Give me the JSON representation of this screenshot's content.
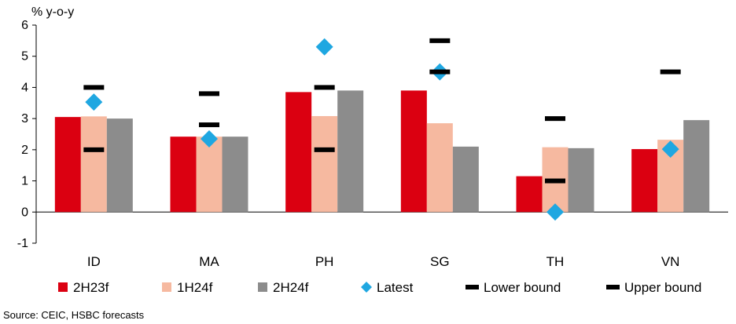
{
  "chart_data": {
    "type": "bar",
    "ylabel": "% y-o-y",
    "ylim": [
      -1,
      6
    ],
    "yticks": [
      -1,
      0,
      1,
      2,
      3,
      4,
      5,
      6
    ],
    "grid": false,
    "categories": [
      "ID",
      "MA",
      "PH",
      "SG",
      "TH",
      "VN"
    ],
    "series": [
      {
        "name": "2H23f",
        "kind": "bar",
        "color": "#db0011",
        "values": [
          3.05,
          2.42,
          3.85,
          3.9,
          1.15,
          2.02
        ]
      },
      {
        "name": "1H24f",
        "kind": "bar",
        "color": "#f6b9a0",
        "values": [
          3.07,
          2.42,
          3.08,
          2.85,
          2.08,
          2.32
        ]
      },
      {
        "name": "2H24f",
        "kind": "bar",
        "color": "#8c8c8c",
        "values": [
          3.0,
          2.42,
          3.9,
          2.1,
          2.05,
          2.95
        ]
      },
      {
        "name": "Latest",
        "kind": "marker",
        "color": "#1fa7e1",
        "values": [
          3.53,
          2.35,
          5.3,
          4.5,
          0.0,
          2.02
        ]
      },
      {
        "name": "Lower bound",
        "kind": "dash",
        "color": "#000000",
        "values": [
          2.0,
          2.8,
          2.0,
          4.5,
          1.0,
          null
        ]
      },
      {
        "name": "Upper bound",
        "kind": "dash",
        "color": "#000000",
        "values": [
          4.0,
          3.8,
          4.0,
          5.5,
          3.0,
          4.5
        ]
      }
    ],
    "legend_position": "bottom"
  },
  "source": "Source: CEIC, HSBC forecasts"
}
